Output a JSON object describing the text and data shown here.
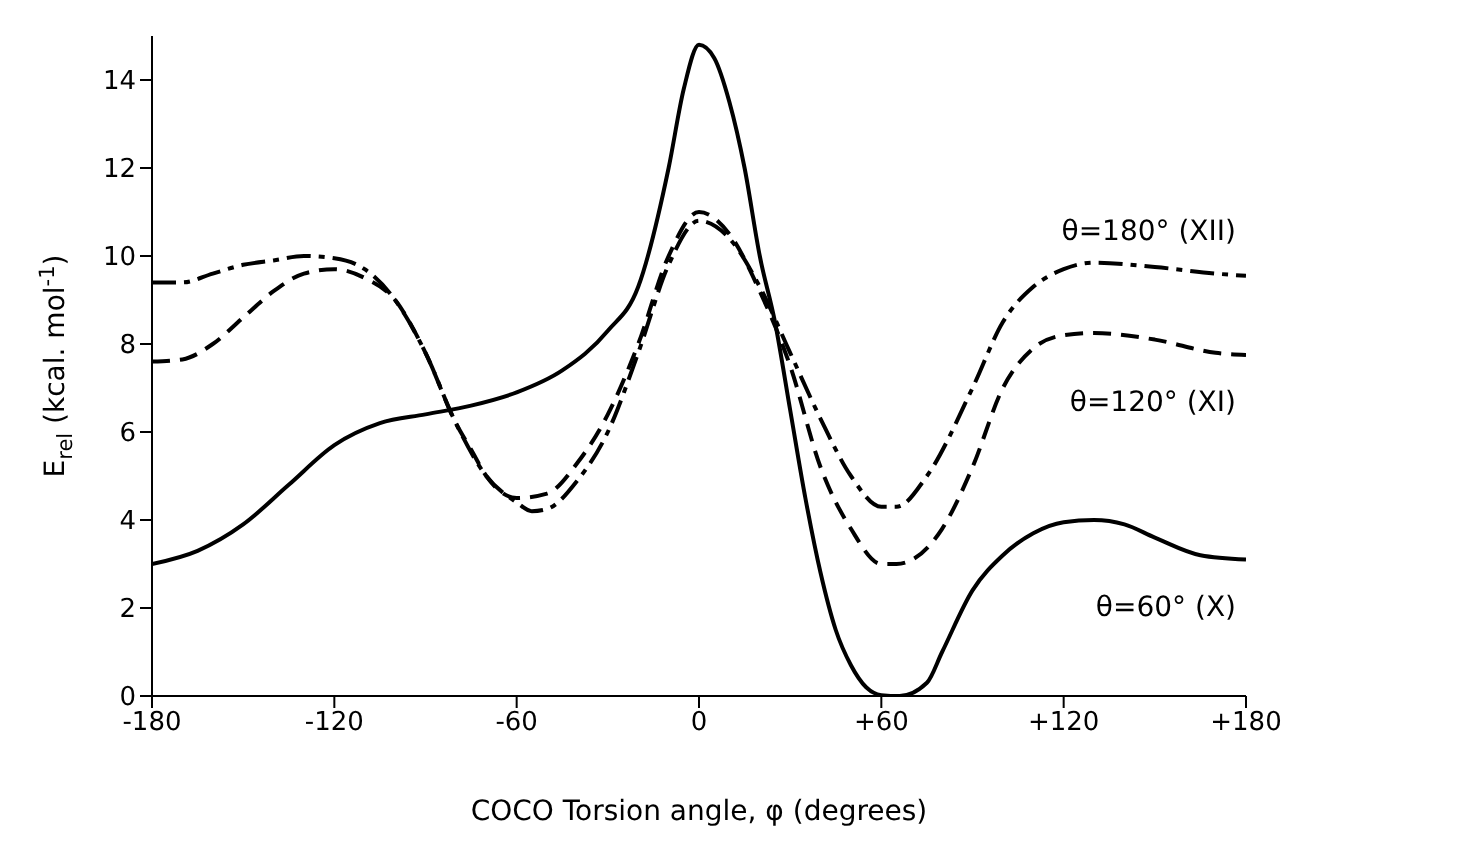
{
  "chart_data": {
    "type": "line",
    "xlabel": "COCO Torsion angle, φ (degrees)",
    "ylabel": "E$_{rel}$ (kcal. mol$^{-1}$)",
    "xlim": [
      -180,
      180
    ],
    "xticks": [
      -180,
      -120,
      -60,
      0,
      {
        "value": 60,
        "label": "+60"
      },
      {
        "value": 120,
        "label": "+120"
      },
      {
        "value": 180,
        "label": "+180"
      }
    ],
    "ylim": [
      0,
      15
    ],
    "yticks": [
      0,
      2,
      4,
      6,
      8,
      10,
      12,
      14
    ],
    "grid": false,
    "legend": false,
    "marker": "none",
    "series": [
      {
        "name": "θ=180° (XII)",
        "color": "#000000",
        "line_style": "dashdot",
        "x": [
          -180,
          -170,
          -160,
          -150,
          -140,
          -130,
          -120,
          -110,
          -100,
          -90,
          -80,
          -70,
          -60,
          -55,
          -50,
          -40,
          -30,
          -20,
          -10,
          0,
          10,
          20,
          30,
          40,
          50,
          60,
          65,
          75,
          90,
          100,
          110,
          120,
          130,
          150,
          170,
          180
        ],
        "values": [
          9.4,
          9.4,
          9.6,
          9.8,
          9.9,
          10.0,
          9.95,
          9.7,
          9.0,
          7.8,
          6.2,
          5.0,
          4.4,
          4.2,
          4.25,
          4.9,
          6.0,
          7.8,
          9.8,
          10.8,
          10.4,
          9.3,
          7.8,
          6.3,
          5.0,
          4.3,
          4.3,
          5.0,
          7.0,
          8.5,
          9.3,
          9.7,
          9.85,
          9.75,
          9.6,
          9.55
        ]
      },
      {
        "name": "θ=120° (XI)",
        "color": "#000000",
        "line_style": "dashed",
        "x": [
          -180,
          -170,
          -160,
          -150,
          -140,
          -130,
          -120,
          -110,
          -100,
          -90,
          -80,
          -75,
          -70,
          -60,
          -50,
          -40,
          -30,
          -20,
          -10,
          0,
          10,
          20,
          30,
          40,
          50,
          60,
          65,
          80,
          90,
          100,
          110,
          120,
          130,
          150,
          170,
          180
        ],
        "values": [
          7.6,
          7.65,
          8.0,
          8.6,
          9.2,
          9.6,
          9.7,
          9.5,
          9.0,
          7.8,
          6.2,
          5.6,
          5.0,
          4.5,
          4.6,
          5.3,
          6.4,
          8.0,
          10.0,
          11.0,
          10.5,
          9.2,
          7.5,
          5.2,
          3.8,
          3.0,
          3.0,
          3.8,
          5.2,
          7.0,
          7.9,
          8.2,
          8.25,
          8.1,
          7.8,
          7.75
        ]
      },
      {
        "name": "θ=60° (X)",
        "color": "#000000",
        "line_style": "solid",
        "x": [
          -180,
          -165,
          -150,
          -135,
          -120,
          -105,
          -90,
          -75,
          -60,
          -45,
          -30,
          -20,
          -10,
          -5,
          0,
          5,
          10,
          15,
          20,
          25,
          30,
          35,
          40,
          45,
          50,
          55,
          60,
          66,
          75,
          80,
          90,
          100,
          110,
          120,
          130,
          140,
          150,
          165,
          180
        ],
        "values": [
          3.0,
          3.3,
          3.9,
          4.8,
          5.7,
          6.2,
          6.4,
          6.6,
          6.9,
          7.4,
          8.3,
          9.3,
          12.0,
          13.8,
          14.8,
          14.5,
          13.5,
          12.0,
          10.0,
          8.5,
          6.5,
          4.5,
          2.8,
          1.5,
          0.7,
          0.2,
          0.02,
          0,
          0.3,
          1.0,
          2.4,
          3.2,
          3.7,
          3.95,
          4.0,
          3.9,
          3.6,
          3.2,
          3.1
        ]
      }
    ]
  }
}
